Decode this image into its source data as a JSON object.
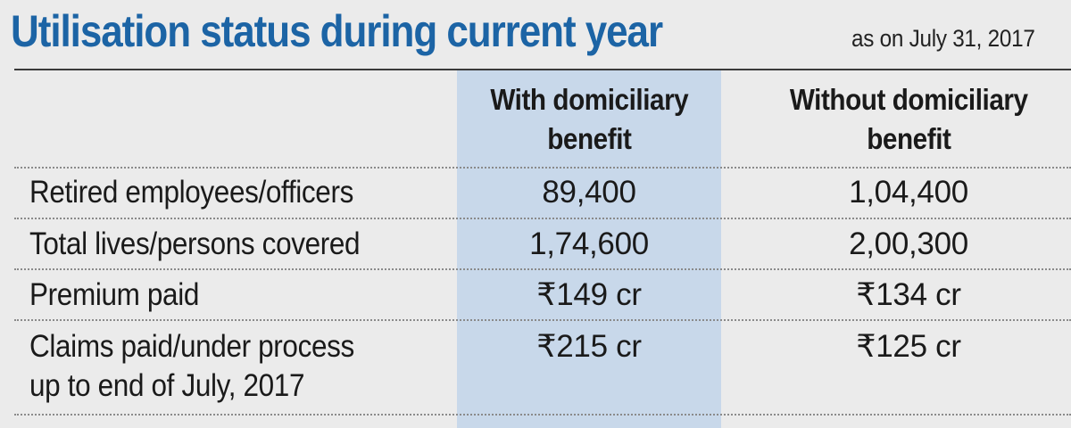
{
  "header": {
    "title": "Utilisation status during current year",
    "subtitle": "as on July 31, 2017"
  },
  "chart_data": {
    "type": "table",
    "columns": [
      "",
      "With domiciliary benefit",
      "Without domiciliary benefit"
    ],
    "column_headers": {
      "with": [
        "With domiciliary",
        "benefit"
      ],
      "without": [
        "Without domiciliary",
        "benefit"
      ]
    },
    "rows": [
      {
        "label": "Retired employees/officers",
        "with": "89,400",
        "without": "1,04,400"
      },
      {
        "label": "Total lives/persons covered",
        "with": "1,74,600",
        "without": "2,00,300"
      },
      {
        "label": "Premium paid",
        "with": "₹149 cr",
        "without": "₹134 cr"
      },
      {
        "label_lines": [
          "Claims paid/under process",
          "up to end of July, 2017"
        ],
        "with": "₹215 cr",
        "without": "₹125 cr"
      }
    ],
    "colors": {
      "title": "#1c64a5",
      "highlight_column": "#c8d8ea",
      "background": "#ebebeb"
    }
  }
}
